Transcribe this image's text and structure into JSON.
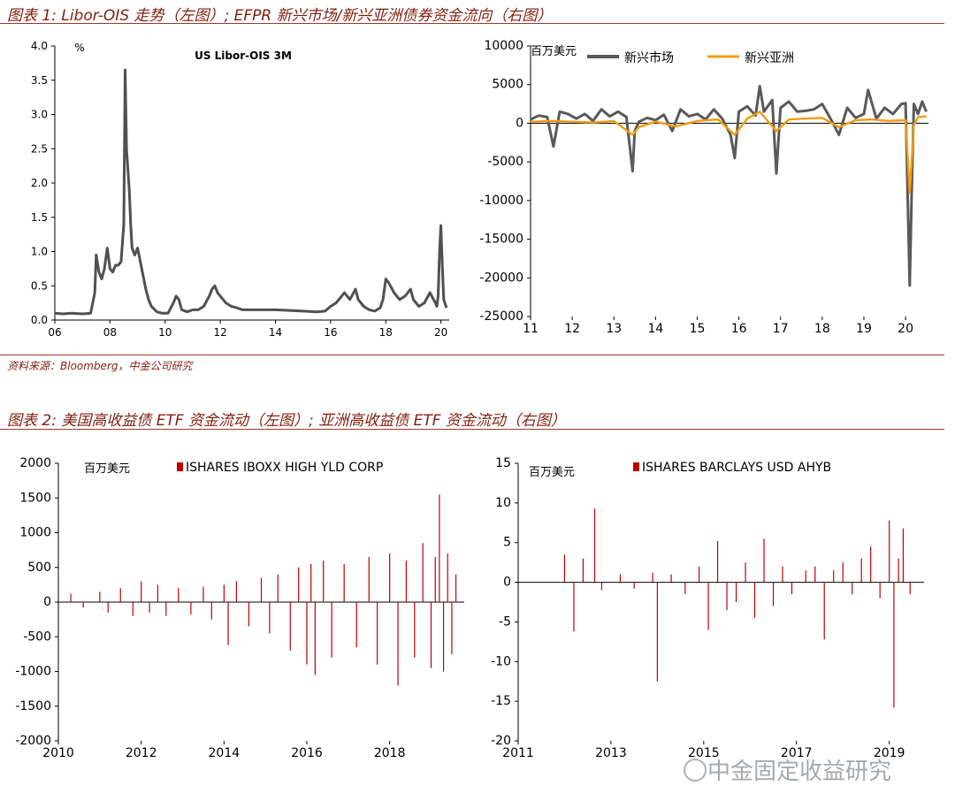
{
  "figure1": {
    "title": "图表 1: Libor-OIS 走势（左图）; EFPR 新兴市场/新兴亚洲债券资金流向（右图）",
    "source": "资料来源：Bloomberg，中金公司研究"
  },
  "figure2": {
    "title": "图表 2: 美国高收益债 ETF 资金流动（左图）; 亚洲高收益债 ETF 资金流动（右图）"
  },
  "watermark": "中金固定收益研究",
  "chart_data": [
    {
      "type": "line",
      "title": "US Libor-OIS 3M",
      "ylabel": "%",
      "xlabel": "",
      "ylim": [
        0,
        4
      ],
      "yticks": [
        "0.0",
        "0.5",
        "1.0",
        "1.5",
        "2.0",
        "2.5",
        "3.0",
        "3.5",
        "4.0"
      ],
      "xticks": [
        "06",
        "08",
        "10",
        "12",
        "14",
        "16",
        "18",
        "20"
      ],
      "xlim": [
        2006,
        2020.3
      ],
      "colors": {
        "line": "#505050"
      },
      "series": [
        {
          "x": [
            2006.0,
            2006.3,
            2006.6,
            2007.0,
            2007.3,
            2007.45,
            2007.5,
            2007.6,
            2007.7,
            2007.8,
            2007.9,
            2008.0,
            2008.1,
            2008.2,
            2008.3,
            2008.4,
            2008.5,
            2008.55,
            2008.6,
            2008.7,
            2008.75,
            2008.8,
            2008.9,
            2009.0,
            2009.1,
            2009.2,
            2009.3,
            2009.4,
            2009.5,
            2009.7,
            2009.9,
            2010.1,
            2010.3,
            2010.4,
            2010.5,
            2010.6,
            2010.8,
            2011.0,
            2011.2,
            2011.4,
            2011.6,
            2011.7,
            2011.8,
            2011.9,
            2012.0,
            2012.2,
            2012.4,
            2012.6,
            2012.8,
            2013.0,
            2014.0,
            2015.0,
            2015.5,
            2015.8,
            2016.0,
            2016.2,
            2016.4,
            2016.5,
            2016.7,
            2016.9,
            2017.0,
            2017.2,
            2017.4,
            2017.6,
            2017.8,
            2017.9,
            2018.0,
            2018.1,
            2018.3,
            2018.5,
            2018.7,
            2018.9,
            2019.0,
            2019.2,
            2019.4,
            2019.6,
            2019.8,
            2019.85,
            2019.9,
            2019.95,
            2020.0,
            2020.05,
            2020.1,
            2020.2
          ],
          "y": [
            0.1,
            0.09,
            0.1,
            0.09,
            0.1,
            0.4,
            0.95,
            0.7,
            0.6,
            0.75,
            1.05,
            0.75,
            0.7,
            0.8,
            0.8,
            0.85,
            1.4,
            3.65,
            2.5,
            1.9,
            1.4,
            1.05,
            0.95,
            1.05,
            0.85,
            0.65,
            0.45,
            0.3,
            0.2,
            0.12,
            0.1,
            0.1,
            0.25,
            0.35,
            0.3,
            0.15,
            0.12,
            0.15,
            0.15,
            0.2,
            0.35,
            0.45,
            0.5,
            0.4,
            0.35,
            0.25,
            0.2,
            0.18,
            0.15,
            0.15,
            0.15,
            0.13,
            0.12,
            0.13,
            0.2,
            0.25,
            0.35,
            0.4,
            0.3,
            0.45,
            0.3,
            0.2,
            0.15,
            0.13,
            0.18,
            0.3,
            0.6,
            0.55,
            0.4,
            0.3,
            0.35,
            0.45,
            0.3,
            0.2,
            0.25,
            0.4,
            0.25,
            0.2,
            0.35,
            1.0,
            1.38,
            0.8,
            0.3,
            0.18
          ]
        }
      ]
    },
    {
      "type": "line",
      "ylabel": "百万美元",
      "ylim": [
        -25000,
        10000
      ],
      "yticks": [
        "-25000",
        "-20000",
        "-15000",
        "-10000",
        "-5000",
        "0",
        "5000",
        "10000"
      ],
      "xticks": [
        "11",
        "12",
        "13",
        "14",
        "15",
        "16",
        "17",
        "18",
        "19",
        "20"
      ],
      "xlim": [
        2011,
        2020.55
      ],
      "legend_position": "top",
      "series": [
        {
          "name": "新兴市场",
          "color": "#595959",
          "x": [
            2011.0,
            2011.2,
            2011.4,
            2011.55,
            2011.7,
            2011.9,
            2012.1,
            2012.3,
            2012.5,
            2012.7,
            2012.9,
            2013.1,
            2013.3,
            2013.45,
            2013.5,
            2013.6,
            2013.8,
            2014.0,
            2014.2,
            2014.4,
            2014.6,
            2014.8,
            2015.0,
            2015.2,
            2015.4,
            2015.6,
            2015.8,
            2015.9,
            2016.0,
            2016.2,
            2016.4,
            2016.5,
            2016.6,
            2016.8,
            2016.9,
            2017.0,
            2017.2,
            2017.4,
            2017.6,
            2017.8,
            2018.0,
            2018.2,
            2018.4,
            2018.6,
            2018.8,
            2019.0,
            2019.1,
            2019.3,
            2019.5,
            2019.7,
            2019.9,
            2020.0,
            2020.1,
            2020.15,
            2020.2,
            2020.3,
            2020.4,
            2020.5
          ],
          "y": [
            500,
            1000,
            800,
            -3000,
            1500,
            1200,
            600,
            1200,
            300,
            1800,
            900,
            1500,
            800,
            -6200,
            -1000,
            200,
            700,
            400,
            1100,
            -1000,
            1800,
            900,
            1200,
            500,
            1800,
            600,
            -1500,
            -4500,
            1500,
            2200,
            1000,
            4800,
            1500,
            3000,
            -6500,
            2000,
            2800,
            1500,
            1600,
            1800,
            2500,
            600,
            -1500,
            2000,
            700,
            1200,
            4300,
            600,
            2000,
            1200,
            2500,
            2600,
            -21000,
            -8000,
            2500,
            1200,
            2800,
            1500
          ]
        },
        {
          "name": "新兴亚洲",
          "color": "#f39c12",
          "x": [
            2011.0,
            2011.5,
            2012.0,
            2012.5,
            2013.0,
            2013.45,
            2013.6,
            2014.0,
            2014.5,
            2015.0,
            2015.5,
            2015.9,
            2016.2,
            2016.5,
            2016.9,
            2017.2,
            2017.6,
            2018.0,
            2018.4,
            2018.8,
            2019.2,
            2019.6,
            2020.0,
            2020.1,
            2020.2,
            2020.3,
            2020.5
          ],
          "y": [
            200,
            300,
            200,
            100,
            300,
            -1500,
            -500,
            200,
            -400,
            300,
            500,
            -1500,
            600,
            1500,
            -1000,
            500,
            600,
            700,
            -500,
            400,
            500,
            300,
            400,
            -9000,
            -200,
            800,
            900
          ]
        }
      ]
    },
    {
      "type": "bar",
      "ylabel": "百万美元",
      "ylim": [
        -2000,
        2000
      ],
      "yticks": [
        "-2000",
        "-1500",
        "-1000",
        "-500",
        "0",
        "500",
        "1000",
        "1500",
        "2000"
      ],
      "xticks": [
        "2010",
        "2012",
        "2014",
        "2016",
        "2018"
      ],
      "xlim": [
        2010,
        2019.8
      ],
      "legend_position": "top",
      "series": [
        {
          "name": "ISHARES IBOXX HIGH YLD CORP",
          "color": "#c00000",
          "x": [
            2010.3,
            2010.6,
            2011.0,
            2011.2,
            2011.5,
            2011.8,
            2012.0,
            2012.2,
            2012.4,
            2012.6,
            2012.9,
            2013.2,
            2013.5,
            2013.7,
            2014.0,
            2014.1,
            2014.3,
            2014.6,
            2014.9,
            2015.1,
            2015.3,
            2015.6,
            2015.8,
            2016.0,
            2016.1,
            2016.2,
            2016.4,
            2016.6,
            2016.9,
            2017.2,
            2017.5,
            2017.7,
            2018.0,
            2018.2,
            2018.4,
            2018.6,
            2018.8,
            2019.0,
            2019.1,
            2019.2,
            2019.3,
            2019.4,
            2019.5,
            2019.6
          ],
          "values": [
            120,
            -80,
            150,
            -150,
            200,
            -200,
            300,
            -150,
            250,
            -200,
            200,
            -180,
            220,
            -250,
            250,
            -620,
            300,
            -350,
            350,
            -450,
            400,
            -700,
            500,
            -900,
            550,
            -1050,
            600,
            -800,
            550,
            -650,
            650,
            -900,
            700,
            -1200,
            600,
            -800,
            850,
            -950,
            650,
            1550,
            -1000,
            700,
            -750,
            400
          ]
        }
      ]
    },
    {
      "type": "bar",
      "ylabel": "百万美元",
      "ylim": [
        -20,
        15
      ],
      "yticks": [
        "-20",
        "-15",
        "-10",
        "-5",
        "0",
        "5",
        "10",
        "15"
      ],
      "xticks": [
        "2011",
        "2013",
        "2015",
        "2017",
        "2019"
      ],
      "xlim": [
        2011,
        2019.75
      ],
      "legend_position": "top",
      "series": [
        {
          "name": "ISHARES BARCLAYS USD AHYB",
          "color": "#c00000",
          "x": [
            2012.0,
            2012.2,
            2012.4,
            2012.65,
            2012.8,
            2013.2,
            2013.5,
            2013.9,
            2014.0,
            2014.3,
            2014.6,
            2014.9,
            2015.1,
            2015.3,
            2015.5,
            2015.7,
            2015.9,
            2016.1,
            2016.3,
            2016.5,
            2016.7,
            2016.9,
            2017.2,
            2017.4,
            2017.6,
            2017.8,
            2018.0,
            2018.2,
            2018.4,
            2018.6,
            2018.8,
            2019.0,
            2019.1,
            2019.2,
            2019.3,
            2019.45
          ],
          "values": [
            3.5,
            -6.2,
            3.0,
            9.3,
            -1.0,
            1.0,
            -0.8,
            1.2,
            -12.5,
            1.0,
            -1.5,
            2.0,
            -6.0,
            5.2,
            -3.5,
            -2.5,
            2.5,
            -4.5,
            5.5,
            -3.0,
            2.0,
            -1.5,
            1.5,
            2.0,
            -7.2,
            1.5,
            2.5,
            -1.5,
            3.0,
            4.5,
            -2.0,
            7.8,
            -15.8,
            3.0,
            6.8,
            -1.5
          ]
        }
      ]
    }
  ]
}
